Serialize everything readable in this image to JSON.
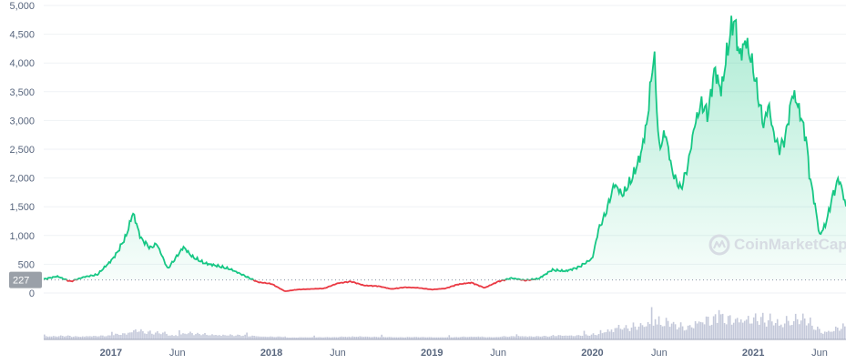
{
  "watermark": {
    "text": "CoinMarketCap",
    "icon": "coinmarketcap-logo-icon"
  },
  "current_price_label": "227",
  "colors": {
    "up_line": "#16c784",
    "down_line": "#ea3943",
    "up_fill": "#16c784",
    "grid": "#eff2f5",
    "axis_text": "#58667e",
    "badge": "#9aa0a8",
    "volume": "#c4c9da",
    "baseline": "#a1a7bb"
  },
  "chart_data": {
    "type": "line",
    "title": "",
    "xlabel": "",
    "ylabel": "",
    "ylim": [
      0,
      5000
    ],
    "yticks": [
      {
        "value": 0,
        "label": "0"
      },
      {
        "value": 500,
        "label": "500"
      },
      {
        "value": 1000,
        "label": "1,000"
      },
      {
        "value": 1500,
        "label": "1,500"
      },
      {
        "value": 2000,
        "label": "2,000"
      },
      {
        "value": 2500,
        "label": "2,500"
      },
      {
        "value": 3000,
        "label": "3,000"
      },
      {
        "value": 3500,
        "label": "3,500"
      },
      {
        "value": 4000,
        "label": "4,000"
      },
      {
        "value": 4500,
        "label": "4,500"
      },
      {
        "value": 5000,
        "label": "5,000"
      }
    ],
    "xlim": [
      "2016-08-01",
      "2021-07-31"
    ],
    "xticks": [
      {
        "date": "2017-01-01",
        "label": "2017",
        "bold": true
      },
      {
        "date": "2017-06-01",
        "label": "Jun",
        "bold": false
      },
      {
        "date": "2018-01-01",
        "label": "2018",
        "bold": true
      },
      {
        "date": "2018-06-01",
        "label": "Jun",
        "bold": false
      },
      {
        "date": "2019-01-01",
        "label": "2019",
        "bold": true
      },
      {
        "date": "2019-06-01",
        "label": "Jun",
        "bold": false
      },
      {
        "date": "2020-01-01",
        "label": "2020",
        "bold": true
      },
      {
        "date": "2020-06-01",
        "label": "Jun",
        "bold": false
      },
      {
        "date": "2021-01-01",
        "label": "2021",
        "bold": true
      },
      {
        "date": "2021-06-01",
        "label": "Jun",
        "bold": false
      }
    ],
    "reference_value": 227,
    "grid": true,
    "series": [
      {
        "values": [
          [
            "2016-08-01",
            240
          ],
          [
            "2016-09-01",
            290
          ],
          [
            "2016-10-01",
            200
          ],
          [
            "2016-11-01",
            280
          ],
          [
            "2016-12-01",
            320
          ],
          [
            "2017-01-01",
            560
          ],
          [
            "2017-01-15",
            700
          ],
          [
            "2017-02-05",
            1000
          ],
          [
            "2017-02-20",
            1400
          ],
          [
            "2017-03-10",
            950
          ],
          [
            "2017-04-01",
            780
          ],
          [
            "2017-04-15",
            860
          ],
          [
            "2017-05-10",
            420
          ],
          [
            "2017-06-01",
            650
          ],
          [
            "2017-06-15",
            800
          ],
          [
            "2017-07-05",
            630
          ],
          [
            "2017-08-01",
            520
          ],
          [
            "2017-09-01",
            470
          ],
          [
            "2017-10-01",
            410
          ],
          [
            "2017-11-01",
            300
          ],
          [
            "2017-12-01",
            190
          ],
          [
            "2018-01-01",
            160
          ],
          [
            "2018-02-01",
            30
          ],
          [
            "2018-03-01",
            60
          ],
          [
            "2018-04-01",
            70
          ],
          [
            "2018-05-01",
            80
          ],
          [
            "2018-06-01",
            170
          ],
          [
            "2018-07-01",
            200
          ],
          [
            "2018-08-01",
            130
          ],
          [
            "2018-09-01",
            120
          ],
          [
            "2018-10-01",
            70
          ],
          [
            "2018-11-01",
            100
          ],
          [
            "2018-12-01",
            90
          ],
          [
            "2019-01-01",
            60
          ],
          [
            "2019-02-01",
            80
          ],
          [
            "2019-03-01",
            150
          ],
          [
            "2019-04-01",
            180
          ],
          [
            "2019-05-01",
            90
          ],
          [
            "2019-06-01",
            200
          ],
          [
            "2019-07-01",
            260
          ],
          [
            "2019-08-01",
            220
          ],
          [
            "2019-09-01",
            250
          ],
          [
            "2019-10-01",
            400
          ],
          [
            "2019-11-01",
            380
          ],
          [
            "2019-12-01",
            450
          ],
          [
            "2020-01-01",
            600
          ],
          [
            "2020-01-15",
            1100
          ],
          [
            "2020-02-01",
            1400
          ],
          [
            "2020-02-20",
            1900
          ],
          [
            "2020-03-10",
            1700
          ],
          [
            "2020-04-01",
            2000
          ],
          [
            "2020-04-20",
            2400
          ],
          [
            "2020-05-05",
            3000
          ],
          [
            "2020-05-20",
            4200
          ],
          [
            "2020-06-01",
            2500
          ],
          [
            "2020-06-15",
            2800
          ],
          [
            "2020-07-01",
            2100
          ],
          [
            "2020-07-20",
            1800
          ],
          [
            "2020-08-05",
            2200
          ],
          [
            "2020-08-20",
            2900
          ],
          [
            "2020-09-05",
            3300
          ],
          [
            "2020-09-20",
            3100
          ],
          [
            "2020-10-05",
            3900
          ],
          [
            "2020-10-20",
            3500
          ],
          [
            "2020-11-05",
            4300
          ],
          [
            "2020-11-18",
            4800
          ],
          [
            "2020-12-01",
            4100
          ],
          [
            "2020-12-15",
            4400
          ],
          [
            "2021-01-01",
            3900
          ],
          [
            "2021-01-15",
            3300
          ],
          [
            "2021-01-25",
            2900
          ],
          [
            "2021-02-05",
            3300
          ],
          [
            "2021-02-15",
            2800
          ],
          [
            "2021-03-01",
            2500
          ],
          [
            "2021-03-15",
            2700
          ],
          [
            "2021-04-01",
            3500
          ],
          [
            "2021-04-15",
            3200
          ],
          [
            "2021-05-01",
            2700
          ],
          [
            "2021-05-10",
            2000
          ],
          [
            "2021-05-20",
            1600
          ],
          [
            "2021-06-01",
            1000
          ],
          [
            "2021-06-15",
            1200
          ],
          [
            "2021-07-01",
            1700
          ],
          [
            "2021-07-15",
            2000
          ],
          [
            "2021-07-25",
            1700
          ],
          [
            "2021-07-31",
            1500
          ]
        ]
      }
    ]
  }
}
